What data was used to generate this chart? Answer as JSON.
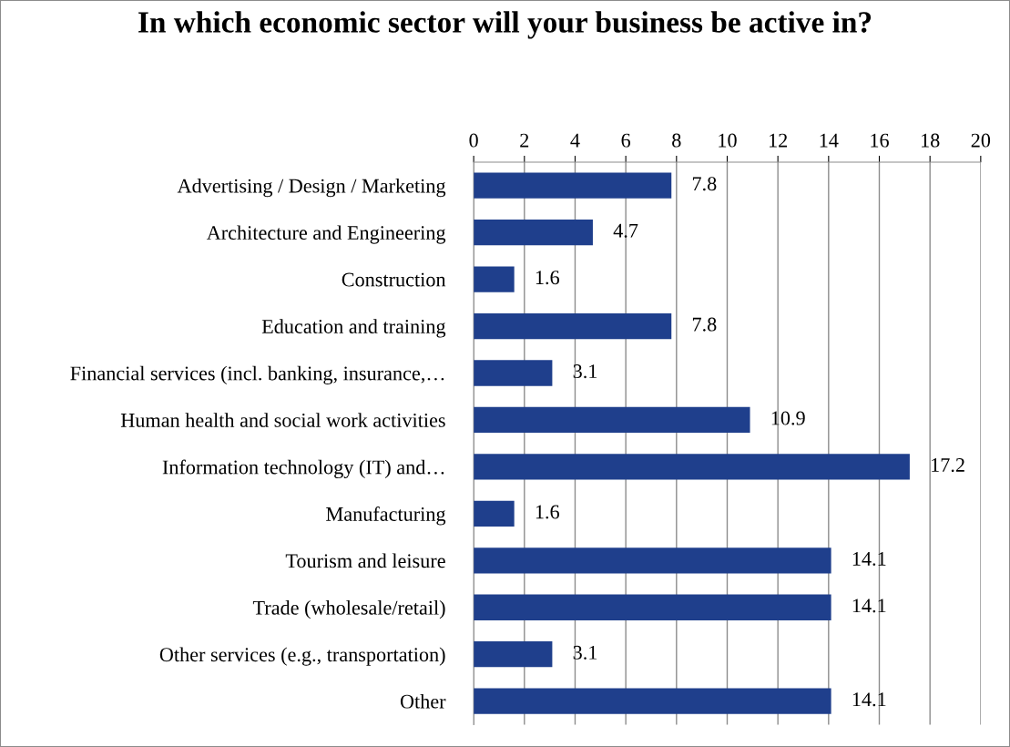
{
  "chart_data": {
    "type": "bar",
    "orientation": "horizontal",
    "title": "In which economic sector will your business be active in?",
    "categories": [
      "Advertising / Design / Marketing",
      "Architecture and Engineering",
      "Construction",
      "Education and training",
      "Financial services (incl. banking, insurance,…",
      "Human health and social work activities",
      "Information technology (IT) and…",
      "Manufacturing",
      "Tourism and leisure",
      "Trade (wholesale/retail)",
      "Other services (e.g., transportation)",
      "Other"
    ],
    "values": [
      7.8,
      4.7,
      1.6,
      7.8,
      3.1,
      10.9,
      17.2,
      1.6,
      14.1,
      14.1,
      3.1,
      14.1
    ],
    "color": "#1f3f8c",
    "xlim": [
      0,
      20
    ],
    "xticks": [
      0,
      2,
      4,
      6,
      8,
      10,
      12,
      14,
      16,
      18,
      20
    ],
    "grid": "x",
    "data_labels": true
  }
}
